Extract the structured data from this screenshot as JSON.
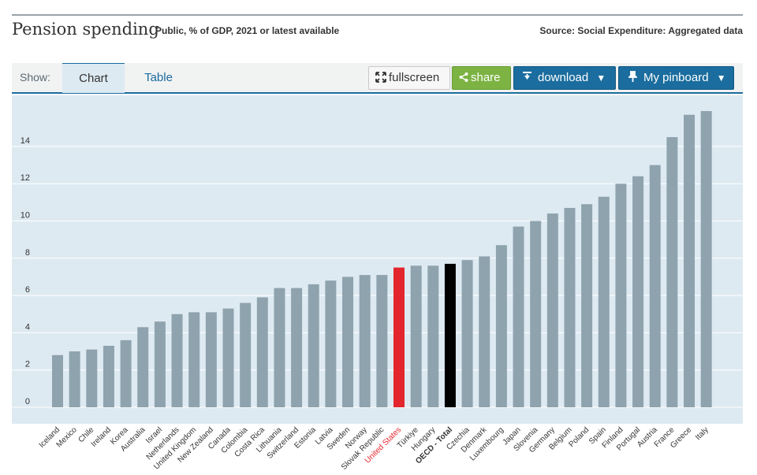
{
  "header": {
    "title": "Pension spending",
    "subtitle": "Public, % of GDP, 2021 or latest available",
    "source": "Source: Social Expenditure: Aggregated data"
  },
  "toolbar": {
    "show_label": "Show:",
    "tabs": [
      {
        "label": "Chart",
        "active": true
      },
      {
        "label": "Table",
        "active": false
      }
    ],
    "fullscreen_label": "fullscreen",
    "share_label": "share",
    "download_label": "download",
    "pinboard_label": "My pinboard"
  },
  "icons": {
    "fullscreen": "expand-icon",
    "share": "share-icon",
    "download": "download-icon",
    "pinboard": "pin-icon",
    "dropdown": "caret-down-icon"
  },
  "colors": {
    "bar_default": "#8fa3ae",
    "bar_highlight": "#e3262d",
    "bar_total": "#000000",
    "chart_background": "#deeaf2",
    "accent": "#1a6d9e",
    "share_green": "#7cb342",
    "highlight_label": "#e3262d"
  },
  "chart_data": {
    "type": "bar",
    "categories": [
      "Iceland",
      "Mexico",
      "Chile",
      "Ireland",
      "Korea",
      "Australia",
      "Israel",
      "Netherlands",
      "United Kingdom",
      "New Zealand",
      "Canada",
      "Colombia",
      "Costa Rica",
      "Lithuania",
      "Switzerland",
      "Estonia",
      "Latvia",
      "Sweden",
      "Norway",
      "Slovak Republic",
      "United States",
      "Türkiye",
      "Hungary",
      "OECD - Total",
      "Czechia",
      "Denmark",
      "Luxembourg",
      "Japan",
      "Slovenia",
      "Germany",
      "Belgium",
      "Poland",
      "Spain",
      "Finland",
      "Portugal",
      "Austria",
      "France",
      "Greece",
      "Italy"
    ],
    "values": [
      2.8,
      3.0,
      3.1,
      3.3,
      3.6,
      4.3,
      4.6,
      5.0,
      5.1,
      5.1,
      5.3,
      5.6,
      5.9,
      6.4,
      6.4,
      6.6,
      6.8,
      7.0,
      7.1,
      7.1,
      7.5,
      7.6,
      7.6,
      7.7,
      7.9,
      8.1,
      8.7,
      9.7,
      10.0,
      10.4,
      10.7,
      10.9,
      11.3,
      12.0,
      12.4,
      13.0,
      14.5,
      15.7,
      15.9
    ],
    "highlight": "United States",
    "total": "OECD - Total",
    "ylim": [
      0,
      16.5
    ],
    "yticks": [
      0,
      2,
      4,
      6,
      8,
      10,
      12,
      14
    ],
    "grid": true,
    "title": "",
    "xlabel": "",
    "ylabel": ""
  }
}
